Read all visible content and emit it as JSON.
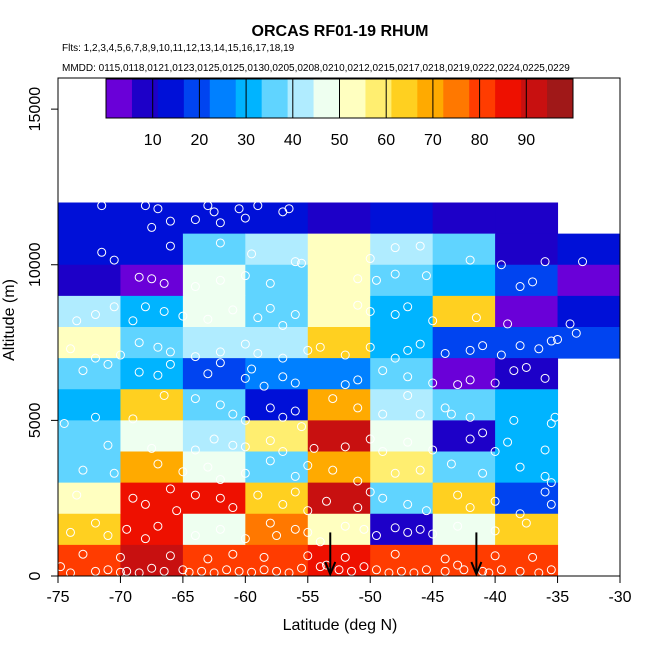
{
  "chart_data": {
    "type": "heatmap",
    "title": "ORCAS RF01-19 RHUM",
    "flights_label": "Flts: 1,2,3,4,5,6,7,8,9,10,11,12,13,14,15,16,17,18,19",
    "dates_label": "MMDD: 0115,0118,0121,0123,0125,0125,0130,0205,0208,0210,0212,0215,0217,0218,0219,0222,0224,0225,0229",
    "xlabel": "Latitude (deg N)",
    "ylabel": "Altitude (m)",
    "xlim": [
      -75,
      -30
    ],
    "ylim": [
      0,
      16000
    ],
    "x_ticks": [
      -75,
      -70,
      -65,
      -60,
      -55,
      -50,
      -45,
      -40,
      -35,
      -30
    ],
    "y_ticks": [
      0,
      5000,
      10000,
      15000
    ],
    "cell_size": {
      "lat": 5,
      "alt": 1000
    },
    "lat_bins": [
      -75,
      -70,
      -65,
      -60,
      -55,
      -50,
      -45,
      -40,
      -35
    ],
    "colorbar": {
      "range": [
        0,
        100
      ],
      "ticks": [
        10,
        20,
        30,
        40,
        50,
        60,
        70,
        80,
        90
      ],
      "palette": [
        "#6a00d8",
        "#1d00c8",
        "#0010d8",
        "#0044f0",
        "#0080ff",
        "#00b4ff",
        "#60d4ff",
        "#b0ecff",
        "#eefff0",
        "#ffffc0",
        "#ffee70",
        "#ffd020",
        "#ffaa00",
        "#ff7800",
        "#ff3c00",
        "#ee1000",
        "#c81010",
        "#a01818"
      ]
    },
    "grid": [
      {
        "alt": 11000,
        "values": [
          16,
          16,
          16,
          16,
          6,
          16,
          6,
          6,
          null
        ]
      },
      {
        "alt": 10000,
        "values": [
          16,
          16,
          35,
          40,
          52,
          42,
          35,
          6,
          12
        ]
      },
      {
        "alt": 9000,
        "values": [
          10,
          4,
          45,
          35,
          52,
          38,
          28,
          22,
          5
        ]
      },
      {
        "alt": 8000,
        "values": [
          40,
          28,
          45,
          38,
          52,
          28,
          62,
          4,
          15
        ]
      },
      {
        "alt": 7000,
        "values": [
          52,
          35,
          40,
          40,
          62,
          32,
          18,
          22,
          22
        ]
      },
      {
        "alt": 6000,
        "values": [
          35,
          30,
          22,
          26,
          26,
          35,
          5,
          10,
          null
        ]
      },
      {
        "alt": 5000,
        "values": [
          30,
          65,
          38,
          12,
          70,
          40,
          35,
          28,
          null
        ]
      },
      {
        "alt": 4000,
        "values": [
          35,
          48,
          42,
          60,
          90,
          48,
          7,
          30,
          null
        ]
      },
      {
        "alt": 3000,
        "values": [
          38,
          70,
          45,
          38,
          72,
          58,
          35,
          28,
          null
        ]
      },
      {
        "alt": 2000,
        "values": [
          55,
          88,
          88,
          65,
          90,
          38,
          65,
          18,
          null
        ]
      },
      {
        "alt": 1000,
        "values": [
          65,
          85,
          48,
          75,
          50,
          8,
          45,
          62,
          null
        ]
      },
      {
        "alt": 0,
        "values": [
          82,
          90,
          82,
          82,
          86,
          82,
          82,
          82,
          null
        ]
      }
    ],
    "arrows_lat": [
      -53.2,
      -41.5
    ],
    "samples": [
      [
        -71.5,
        11900
      ],
      [
        -68,
        11900
      ],
      [
        -67,
        11800
      ],
      [
        -63,
        11900
      ],
      [
        -62.5,
        11700
      ],
      [
        -60.5,
        11800
      ],
      [
        -59,
        11900
      ],
      [
        -57,
        11700
      ],
      [
        -56.5,
        11800
      ],
      [
        -66,
        11400
      ],
      [
        -64,
        11450
      ],
      [
        -62,
        11350
      ],
      [
        -60,
        11500
      ],
      [
        -70.5,
        10150
      ],
      [
        -71.5,
        10400
      ],
      [
        -67.5,
        11200
      ],
      [
        -66,
        10600
      ],
      [
        -62,
        10700
      ],
      [
        -59.5,
        10350
      ],
      [
        -56,
        10100
      ],
      [
        -55.5,
        10050
      ],
      [
        -50,
        10200
      ],
      [
        -48,
        10550
      ],
      [
        -46,
        10600
      ],
      [
        -42,
        10150
      ],
      [
        -39.5,
        10000
      ],
      [
        -36,
        10100
      ],
      [
        -33,
        10100
      ],
      [
        -68.5,
        9600
      ],
      [
        -67.5,
        9550
      ],
      [
        -66.5,
        9400
      ],
      [
        -64,
        9300
      ],
      [
        -62,
        9500
      ],
      [
        -60,
        9650
      ],
      [
        -58,
        9400
      ],
      [
        -51,
        9550
      ],
      [
        -49.5,
        9500
      ],
      [
        -48,
        9700
      ],
      [
        -45.5,
        9650
      ],
      [
        -38,
        9300
      ],
      [
        -37,
        9450
      ],
      [
        -72,
        8400
      ],
      [
        -73.5,
        8200
      ],
      [
        -70.5,
        8650
      ],
      [
        -69,
        8200
      ],
      [
        -68,
        8650
      ],
      [
        -66.5,
        8500
      ],
      [
        -65,
        8350
      ],
      [
        -63,
        8250
      ],
      [
        -61,
        8550
      ],
      [
        -59,
        8300
      ],
      [
        -58,
        8600
      ],
      [
        -57,
        8050
      ],
      [
        -56,
        8400
      ],
      [
        -51,
        8700
      ],
      [
        -50,
        8500
      ],
      [
        -48,
        8400
      ],
      [
        -47,
        8650
      ],
      [
        -45,
        8200
      ],
      [
        -34,
        8100
      ],
      [
        -33.5,
        7800
      ],
      [
        -35,
        7600
      ],
      [
        -39,
        8100
      ],
      [
        -41.5,
        8300
      ],
      [
        -74,
        7300
      ],
      [
        -72,
        7000
      ],
      [
        -70,
        7100
      ],
      [
        -68.5,
        7500
      ],
      [
        -67,
        7350
      ],
      [
        -66,
        7200
      ],
      [
        -64,
        7050
      ],
      [
        -62,
        7200
      ],
      [
        -60,
        7450
      ],
      [
        -59,
        7150
      ],
      [
        -57,
        7000
      ],
      [
        -55,
        7250
      ],
      [
        -54,
        7350
      ],
      [
        -52,
        7100
      ],
      [
        -50,
        7350
      ],
      [
        -48,
        7000
      ],
      [
        -47,
        7250
      ],
      [
        -46,
        7450
      ],
      [
        -44,
        7150
      ],
      [
        -42,
        7250
      ],
      [
        -41,
        7400
      ],
      [
        -38,
        7400
      ],
      [
        -36.5,
        7300
      ],
      [
        -35.5,
        7550
      ],
      [
        -39.5,
        7100
      ],
      [
        -73,
        6600
      ],
      [
        -71,
        6800
      ],
      [
        -68.5,
        6550
      ],
      [
        -67,
        6450
      ],
      [
        -66,
        6800
      ],
      [
        -63,
        6500
      ],
      [
        -62,
        6850
      ],
      [
        -60,
        6350
      ],
      [
        -59.5,
        6650
      ],
      [
        -58.5,
        6100
      ],
      [
        -57,
        6400
      ],
      [
        -56,
        6200
      ],
      [
        -52,
        6150
      ],
      [
        -51,
        6300
      ],
      [
        -49,
        6600
      ],
      [
        -47,
        6400
      ],
      [
        -45,
        6200
      ],
      [
        -43,
        6150
      ],
      [
        -42,
        6300
      ],
      [
        -40,
        6200
      ],
      [
        -38.5,
        6600
      ],
      [
        -37.5,
        6700
      ],
      [
        -36,
        6350
      ],
      [
        -74.5,
        4900
      ],
      [
        -72,
        5100
      ],
      [
        -69,
        5050
      ],
      [
        -66.5,
        5800
      ],
      [
        -64,
        5700
      ],
      [
        -62,
        5500
      ],
      [
        -61,
        5200
      ],
      [
        -60,
        5000
      ],
      [
        -58,
        5400
      ],
      [
        -57,
        5100
      ],
      [
        -56,
        5300
      ],
      [
        -55.5,
        4800
      ],
      [
        -53,
        5700
      ],
      [
        -51,
        5400
      ],
      [
        -49,
        5200
      ],
      [
        -46,
        5200
      ],
      [
        -43.5,
        5200
      ],
      [
        -42,
        5100
      ],
      [
        -41,
        4600
      ],
      [
        -38.5,
        5000
      ],
      [
        -35.5,
        4900
      ],
      [
        -35.2,
        5100
      ],
      [
        -44,
        5400
      ],
      [
        -47,
        5800
      ],
      [
        -71,
        4200
      ],
      [
        -67.5,
        4100
      ],
      [
        -64,
        4050
      ],
      [
        -62.5,
        4400
      ],
      [
        -61,
        4200
      ],
      [
        -60,
        4150
      ],
      [
        -58,
        4350
      ],
      [
        -57,
        4000
      ],
      [
        -54.5,
        4100
      ],
      [
        -52,
        4150
      ],
      [
        -50,
        4400
      ],
      [
        -49,
        4000
      ],
      [
        -47,
        4300
      ],
      [
        -45,
        4050
      ],
      [
        -42,
        4400
      ],
      [
        -40,
        4000
      ],
      [
        -39,
        4300
      ],
      [
        -36,
        4050
      ],
      [
        -73,
        3400
      ],
      [
        -70.5,
        3300
      ],
      [
        -67,
        3600
      ],
      [
        -65,
        3350
      ],
      [
        -63,
        3500
      ],
      [
        -62,
        3100
      ],
      [
        -60,
        3300
      ],
      [
        -58,
        3700
      ],
      [
        -56,
        3200
      ],
      [
        -55,
        3550
      ],
      [
        -53,
        3400
      ],
      [
        -51,
        3050
      ],
      [
        -48,
        3300
      ],
      [
        -46,
        3400
      ],
      [
        -43.5,
        3600
      ],
      [
        -41,
        3300
      ],
      [
        -38,
        3500
      ],
      [
        -36,
        3200
      ],
      [
        -35.5,
        3000
      ],
      [
        -73.5,
        2600
      ],
      [
        -69,
        2500
      ],
      [
        -68,
        2300
      ],
      [
        -66,
        2800
      ],
      [
        -65.5,
        2100
      ],
      [
        -64,
        2600
      ],
      [
        -62,
        2500
      ],
      [
        -61,
        2200
      ],
      [
        -59,
        2600
      ],
      [
        -57,
        2300
      ],
      [
        -56,
        2700
      ],
      [
        -55,
        2100
      ],
      [
        -53.5,
        2400
      ],
      [
        -51,
        2200
      ],
      [
        -50,
        2700
      ],
      [
        -49,
        2500
      ],
      [
        -47,
        2300
      ],
      [
        -45.5,
        2100
      ],
      [
        -43,
        2600
      ],
      [
        -42,
        2200
      ],
      [
        -40,
        2400
      ],
      [
        -38,
        2000
      ],
      [
        -36,
        2700
      ],
      [
        -35.5,
        2300
      ],
      [
        -74,
        1400
      ],
      [
        -72,
        1700
      ],
      [
        -71,
        1300
      ],
      [
        -69.5,
        1500
      ],
      [
        -68,
        1200
      ],
      [
        -67,
        1600
      ],
      [
        -64,
        1300
      ],
      [
        -62,
        1500
      ],
      [
        -60,
        1200
      ],
      [
        -58,
        1700
      ],
      [
        -57.5,
        1300
      ],
      [
        -56,
        1500
      ],
      [
        -55,
        1400
      ],
      [
        -54,
        1100
      ],
      [
        -52,
        1600
      ],
      [
        -50.5,
        1500
      ],
      [
        -49.5,
        1300
      ],
      [
        -48,
        1550
      ],
      [
        -47,
        1400
      ],
      [
        -46,
        1500
      ],
      [
        -45,
        1350
      ],
      [
        -43,
        1600
      ],
      [
        -40,
        1450
      ],
      [
        -37.5,
        1700
      ],
      [
        -74.8,
        300
      ],
      [
        -74,
        100
      ],
      [
        -72,
        150
      ],
      [
        -71,
        200
      ],
      [
        -70,
        120
      ],
      [
        -69.5,
        150
      ],
      [
        -68.5,
        100
      ],
      [
        -67.5,
        250
      ],
      [
        -66.5,
        150
      ],
      [
        -65,
        200
      ],
      [
        -64.5,
        120
      ],
      [
        -63.5,
        150
      ],
      [
        -62.5,
        100
      ],
      [
        -61.5,
        200
      ],
      [
        -60.5,
        150
      ],
      [
        -59.5,
        120
      ],
      [
        -58.5,
        200
      ],
      [
        -57.5,
        150
      ],
      [
        -56.5,
        100
      ],
      [
        -55.5,
        250
      ],
      [
        -54,
        300
      ],
      [
        -53.5,
        350
      ],
      [
        -52.5,
        200
      ],
      [
        -51.5,
        150
      ],
      [
        -50.5,
        300
      ],
      [
        -49.5,
        200
      ],
      [
        -48.5,
        100
      ],
      [
        -47.5,
        150
      ],
      [
        -46.5,
        100
      ],
      [
        -45.5,
        200
      ],
      [
        -44,
        150
      ],
      [
        -43,
        350
      ],
      [
        -42.5,
        200
      ],
      [
        -41,
        150
      ],
      [
        -40.5,
        100
      ],
      [
        -39.5,
        200
      ],
      [
        -38,
        150
      ],
      [
        -36.5,
        100
      ],
      [
        -35.5,
        200
      ],
      [
        -73,
        700
      ],
      [
        -70,
        600
      ],
      [
        -66,
        650
      ],
      [
        -63,
        550
      ],
      [
        -61,
        700
      ],
      [
        -58.5,
        600
      ],
      [
        -55,
        650
      ],
      [
        -52,
        600
      ],
      [
        -48,
        700
      ],
      [
        -44,
        550
      ],
      [
        -40,
        650
      ],
      [
        -37,
        600
      ]
    ]
  }
}
